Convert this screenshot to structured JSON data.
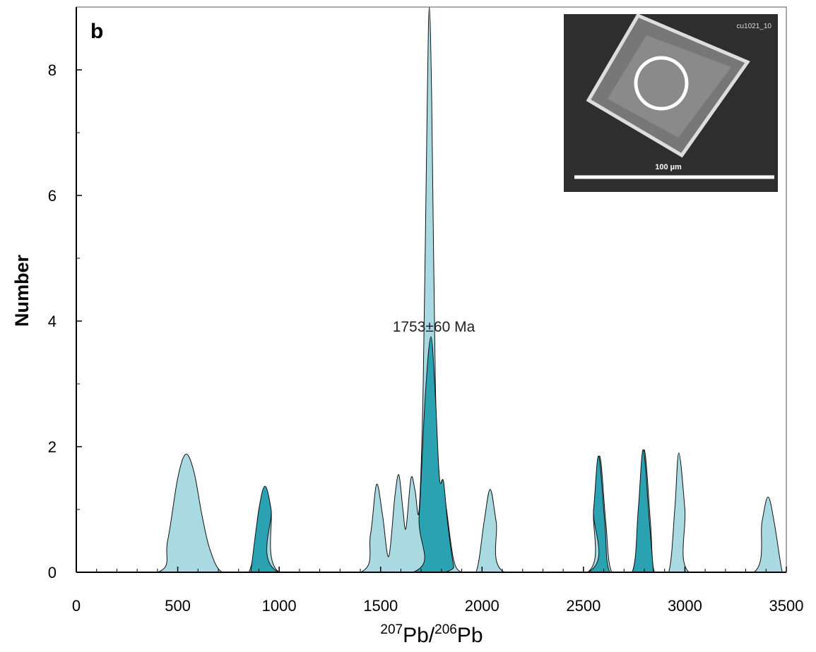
{
  "chart_data": {
    "type": "area",
    "panel_label": "b",
    "ylabel": "Number",
    "xlabel": [
      "207",
      "Pb/",
      "206",
      "Pb"
    ],
    "annotation": "1753±60 Ma",
    "inset": {
      "label": "cu1021_10",
      "scale_label": "100 µm"
    },
    "xlim": [
      0,
      3500
    ],
    "xticks": [
      0,
      500,
      1000,
      1500,
      2000,
      2500,
      3000,
      3500
    ],
    "xminor": [
      100,
      200,
      300,
      400,
      600,
      700,
      800,
      900,
      1100,
      1200,
      1300,
      1400,
      1600,
      1700,
      1800,
      1900,
      2100,
      2200,
      2300,
      2400,
      2600,
      2700,
      2800,
      2900,
      3100,
      3200,
      3300,
      3400
    ],
    "ylim": [
      0,
      9
    ],
    "yticks": [
      0,
      2,
      4,
      6,
      8
    ],
    "yminor": [
      1,
      3,
      5,
      7
    ],
    "series": [
      {
        "color": "#a9d9e1",
        "x": [
          0,
          400,
          450,
          500,
          540,
          580,
          620,
          660,
          720,
          850,
          900,
          930,
          960,
          1000,
          1400,
          1450,
          1480,
          1510,
          1540,
          1570,
          1590,
          1610,
          1625,
          1650,
          1670,
          1690,
          1710,
          1730,
          1740,
          1752,
          1770,
          1790,
          1805,
          1825,
          1860,
          1900,
          1970,
          2010,
          2040,
          2070,
          2110,
          2520,
          2550,
          2580,
          2610,
          2640,
          2740,
          2775,
          2800,
          2830,
          2850,
          2920,
          2950,
          2970,
          3000,
          3020,
          3340,
          3380,
          3410,
          3440,
          3480,
          3500
        ],
        "values": [
          0,
          0,
          0.5,
          1.5,
          1.88,
          1.6,
          0.9,
          0.35,
          0,
          0,
          1.0,
          1.35,
          1.0,
          0,
          0,
          0.6,
          1.4,
          0.9,
          0.25,
          1.2,
          1.55,
          1.0,
          0.7,
          1.5,
          1.3,
          1.0,
          3.0,
          7.5,
          9.0,
          7.5,
          3.0,
          1.5,
          1.45,
          1.0,
          0.2,
          0,
          0,
          0.8,
          1.32,
          0.8,
          0,
          0,
          1.0,
          1.85,
          0.8,
          0,
          0,
          1.0,
          1.95,
          0.8,
          0,
          0,
          1.0,
          1.9,
          1.0,
          0,
          0,
          0.8,
          1.2,
          0.8,
          0,
          0
        ]
      },
      {
        "color": "#2aa2b2",
        "x": [
          860,
          900,
          930,
          960,
          1000,
          1660,
          1690,
          1720,
          1748,
          1770,
          1790,
          1810,
          1830,
          1860,
          1880,
          2520,
          2550,
          2575,
          2605,
          2630,
          2740,
          2770,
          2795,
          2825,
          2845
        ],
        "values": [
          0,
          1.0,
          1.37,
          1.0,
          0,
          0,
          0.9,
          2.8,
          3.75,
          2.8,
          1.5,
          1.45,
          0.8,
          0.1,
          0,
          0,
          1.0,
          1.85,
          0.8,
          0,
          0,
          1.0,
          1.95,
          0.8,
          0
        ]
      }
    ]
  }
}
